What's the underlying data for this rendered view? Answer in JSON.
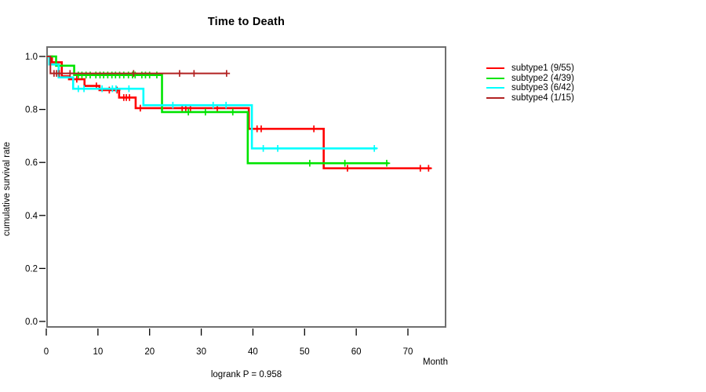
{
  "title": "Time to Death",
  "footnote": "logrank P = 0.958",
  "chart_data": {
    "type": "line",
    "subtype": "kaplan-meier-step-curves",
    "title": "Time to Death",
    "xlabel": "Month",
    "ylabel": "cumulative survival rate",
    "xlim": [
      0,
      77
    ],
    "ylim": [
      0,
      1.04
    ],
    "grid": false,
    "legend_position": "right-outside",
    "xtick_values": [
      0,
      10,
      20,
      30,
      40,
      50,
      60,
      70
    ],
    "xtick_labels": [
      "0",
      "10",
      "20",
      "30",
      "40",
      "50",
      "60",
      "70"
    ],
    "ytick_values": [
      0.0,
      0.2,
      0.4,
      0.6,
      0.8,
      1.0
    ],
    "ytick_labels": [
      "0.0",
      "0.2",
      "0.4",
      "0.6",
      "0.8",
      "1.0"
    ],
    "axis_color": "#000000",
    "box_color": "#6F6F6F",
    "series": [
      {
        "name": "subtype1 (9/55)",
        "color": "#FF0000",
        "events": 9,
        "n": 55,
        "line_width": 2.6,
        "start_value": 1.0,
        "steps": [
          [
            1.1,
            0.978
          ],
          [
            3.0,
            0.925
          ],
          [
            4.4,
            0.914
          ],
          [
            7.4,
            0.889
          ],
          [
            10.3,
            0.873
          ],
          [
            14.1,
            0.845
          ],
          [
            17.3,
            0.805
          ],
          [
            39.2,
            0.727
          ],
          [
            53.7,
            0.578
          ]
        ],
        "end_time": 74.5,
        "censor_times": [
          5.9,
          9.7,
          12.2,
          13.7,
          15.0,
          15.5,
          16.1,
          18.2,
          26.3,
          27.0,
          27.9,
          33.1,
          40.8,
          41.6,
          51.8,
          58.3,
          72.4,
          74.0
        ]
      },
      {
        "name": "subtype2 (4/39)",
        "color": "#00E400",
        "events": 4,
        "n": 39,
        "line_width": 2.6,
        "start_value": 1.0,
        "steps": [
          [
            1.9,
            0.965
          ],
          [
            5.4,
            0.93
          ],
          [
            22.4,
            0.79
          ],
          [
            39.0,
            0.597
          ]
        ],
        "end_time": 66.3,
        "censor_times": [
          6.2,
          6.9,
          7.7,
          8.5,
          9.6,
          10.4,
          11.1,
          11.9,
          12.7,
          13.4,
          14.2,
          15.0,
          15.9,
          16.7,
          17.2,
          18.5,
          19.2,
          20.0,
          21.4,
          27.5,
          30.8,
          36.1,
          51.0,
          57.8,
          65.9
        ]
      },
      {
        "name": "subtype3 (6/42)",
        "color": "#00FFFF",
        "events": 6,
        "n": 42,
        "line_width": 2.6,
        "start_value": 1.0,
        "steps": [
          [
            0.6,
            0.97
          ],
          [
            2.4,
            0.921
          ],
          [
            5.2,
            0.878
          ],
          [
            18.8,
            0.816
          ],
          [
            39.8,
            0.653
          ]
        ],
        "end_time": 64.0,
        "censor_times": [
          6.2,
          7.3,
          10.8,
          12.8,
          13.5,
          16.0,
          24.5,
          32.3,
          34.8,
          42.0,
          44.8,
          63.5
        ]
      },
      {
        "name": "subtype4 (1/15)",
        "color": "#B22222",
        "events": 1,
        "n": 15,
        "line_width": 2.0,
        "start_value": 1.0,
        "steps": [
          [
            0.8,
            0.936
          ]
        ],
        "end_time": 35.0,
        "censor_times": [
          1.5,
          2.0,
          2.5,
          4.6,
          16.9,
          25.8,
          28.6,
          34.9
        ]
      }
    ]
  }
}
